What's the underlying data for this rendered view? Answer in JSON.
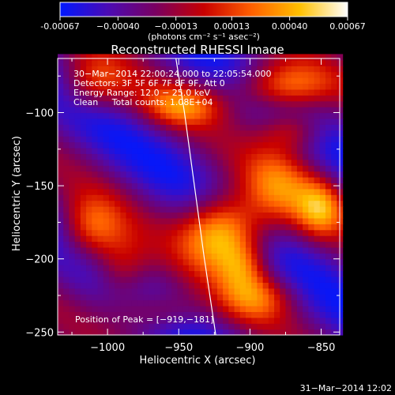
{
  "chart_data": {
    "type": "heatmap",
    "title": "Reconstructed RHESSI Image",
    "xlabel": "Heliocentric X (arcsec)",
    "ylabel": "Heliocentric Y (arcsec)",
    "xlim": [
      -1035,
      -837
    ],
    "ylim": [
      -252,
      -63
    ],
    "x_ticks": [
      -1000,
      -950,
      -900,
      -850
    ],
    "y_ticks": [
      -250,
      -200,
      -150,
      -100
    ],
    "x_tick_labels": [
      "−1000",
      "−950",
      "−900",
      "−850"
    ],
    "y_tick_labels": [
      "−250",
      "−200",
      "−150",
      "−100"
    ],
    "colorbar": {
      "min": -0.00067,
      "max": 0.00067,
      "tick_labels": [
        "-0.00067",
        "−0.00040",
        "−0.00013",
        "0.00013",
        "0.00040",
        "0.00067"
      ],
      "tick_values": [
        -0.00067,
        -0.0004,
        -0.00013,
        0.00013,
        0.0004,
        0.00067
      ],
      "unit_label": "(photons cm⁻² s⁻¹ asec⁻²)",
      "colors": [
        "#0018ff",
        "#4b0bb4",
        "#7a0060",
        "#c80000",
        "#ff6000",
        "#ffc000",
        "#ffffff"
      ]
    },
    "info_lines": [
      "30−Mar−2014 22:00:24.000 to 22:05:54.000",
      "Detectors: 3F 5F 6F 7F 8F 9F, Att 0",
      "Energy Range: 12.0 − 25.0 keV",
      "Clean     Total counts: 1.08E+04"
    ],
    "peak_label": "Position of Peak = [−919,−181]",
    "peak": [
      -919,
      -181
    ],
    "limb_curve": [
      [
        -952,
        -63
      ],
      [
        -946,
        -100
      ],
      [
        -939,
        -150
      ],
      [
        -932,
        -200
      ],
      [
        -924,
        -252
      ]
    ],
    "sources": [
      {
        "x": -919,
        "y": -181,
        "amp": 1.0,
        "sx": 20,
        "sy": 18
      },
      {
        "x": -878,
        "y": -82,
        "amp": 0.72,
        "sx": 24,
        "sy": 12
      },
      {
        "x": -948,
        "y": -95,
        "amp": 0.55,
        "sx": 20,
        "sy": 10
      },
      {
        "x": -1010,
        "y": -80,
        "amp": 0.5,
        "sx": 18,
        "sy": 14
      },
      {
        "x": -1012,
        "y": -180,
        "amp": 0.6,
        "sx": 16,
        "sy": 16
      },
      {
        "x": -990,
        "y": -208,
        "amp": 0.45,
        "sx": 14,
        "sy": 16
      },
      {
        "x": -880,
        "y": -150,
        "amp": 0.5,
        "sx": 18,
        "sy": 20
      },
      {
        "x": -850,
        "y": -165,
        "amp": 0.6,
        "sx": 12,
        "sy": 14
      },
      {
        "x": -895,
        "y": -226,
        "amp": 0.5,
        "sx": 18,
        "sy": 12
      },
      {
        "x": -965,
        "y": -236,
        "amp": 0.4,
        "sx": 20,
        "sy": 10
      },
      {
        "x": -870,
        "y": -112,
        "amp": 0.45,
        "sx": 16,
        "sy": 10
      },
      {
        "x": -905,
        "y": -205,
        "amp": 0.4,
        "sx": 12,
        "sy": 12
      }
    ],
    "wave": {
      "amp": 0.28,
      "kx": 0.045,
      "ky": 0.062
    },
    "grid": false
  },
  "footer": {
    "timestamp": "31−Mar−2014 12:02"
  }
}
